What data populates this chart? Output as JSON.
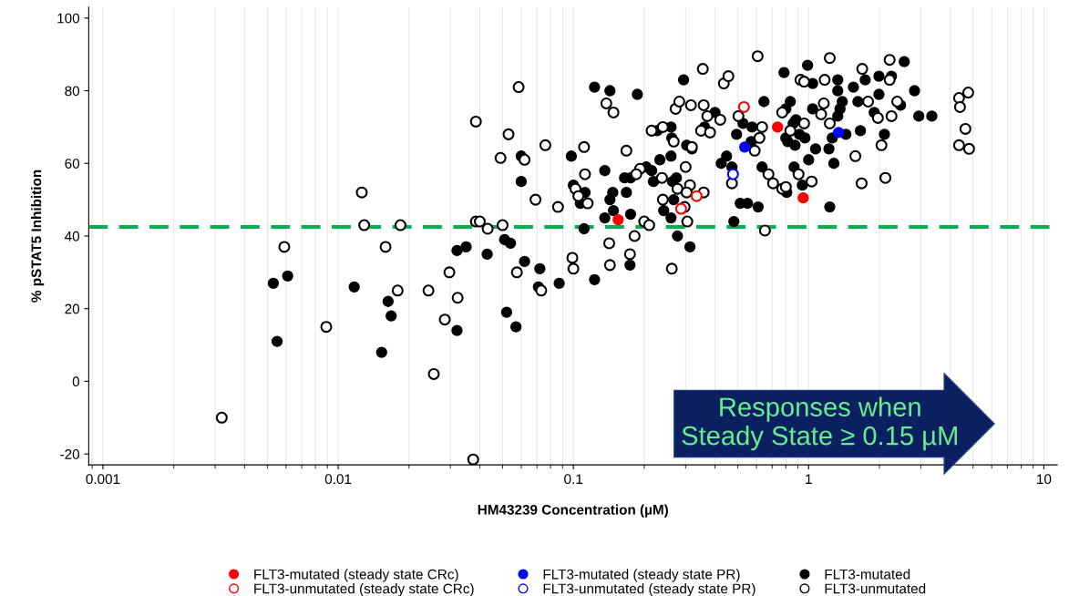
{
  "chart_data": {
    "type": "scatter",
    "xlabel": "HM43239 Concentration (µM)",
    "ylabel": "% pSTAT5 Inhibition",
    "log": "x",
    "xlim": [
      0.00087,
      11.4
    ],
    "xticks": [
      0.001,
      0.01,
      0.1,
      1,
      10
    ],
    "ylim": [
      -23,
      103
    ],
    "yticks": [
      -20,
      0,
      20,
      40,
      60,
      80,
      100
    ],
    "grid": "x",
    "legend": "bottom",
    "marker": "circle",
    "ref_lines": [
      {
        "axis": "y",
        "value": 42.5,
        "color": "#00b050",
        "line_style": "dashed"
      }
    ],
    "annotations": [
      "Responses when\nSteady State ≥ 0.15 µM"
    ],
    "series": [
      {
        "name": "FLT3-mutated (steady state CRc)",
        "color": "#ff0000",
        "x": [
          0.155,
          0.738,
          0.948
        ],
        "values": [
          44.5,
          70,
          50.5
        ]
      },
      {
        "name": "FLT3-unmutated (steady state CRc)",
        "color": "#ff0000",
        "marker": "circle-open",
        "x": [
          0.287,
          0.334,
          0.531
        ],
        "values": [
          47.5,
          51,
          75.5
        ]
      },
      {
        "name": "FLT3-mutated (steady state PR)",
        "color": "#0000ff",
        "x": [
          0.535,
          1.34
        ],
        "values": [
          64.5,
          68.5
        ]
      },
      {
        "name": "FLT3-unmutated (steady state PR)",
        "color": "#0000ff",
        "marker": "circle-open",
        "x": [
          0.477
        ],
        "values": [
          57
        ]
      },
      {
        "name": "FLT3-mutated",
        "color": "#000000",
        "x": [
          0.0053,
          0.0061,
          0.0055,
          0.0117,
          0.0163,
          0.0168,
          0.0153,
          0.032,
          0.035,
          0.043,
          0.051,
          0.054,
          0.062,
          0.072,
          0.071,
          0.087,
          0.123,
          0.052,
          0.057,
          0.032,
          0.174,
          0.313,
          0.277,
          0.06,
          0.06,
          0.098,
          0.1,
          0.112,
          0.107,
          0.111,
          0.123,
          0.143,
          0.187,
          0.136,
          0.147,
          0.168,
          0.143,
          0.148,
          0.136,
          0.175,
          0.165,
          0.175,
          0.204,
          0.215,
          0.219,
          0.233,
          0.26,
          0.227,
          0.26,
          0.262,
          0.303,
          0.319,
          0.294,
          0.4,
          0.361,
          0.274,
          0.264,
          0.267,
          0.242,
          0.26,
          0.448,
          0.425,
          0.472,
          0.494,
          0.526,
          0.512,
          0.481,
          0.646,
          0.575,
          0.57,
          0.786,
          0.99,
          0.836,
          0.8,
          0.883,
          0.86,
          0.914,
          0.964,
          0.8,
          0.815,
          0.875,
          1.04,
          1.04,
          1.07,
          1.22,
          1.0,
          0.867,
          0.634,
          0.94,
          0.807,
          1.28,
          1.23,
          1.33,
          1.33,
          1.39,
          1.36,
          1.33,
          1.26,
          1.44,
          1.55,
          1.74,
          1.99,
          2.25,
          2.55,
          1.99,
          1.62,
          1.9,
          2.46,
          2.82,
          2.94,
          3.34,
          1.66,
          2.1,
          0.55,
          0.61
        ],
        "values": [
          27,
          29,
          11,
          26,
          22,
          18,
          8,
          36,
          37,
          35,
          39,
          38,
          33,
          31,
          26,
          27,
          28,
          19,
          15,
          14,
          32,
          37,
          40,
          62,
          55,
          62,
          54,
          52,
          49,
          42,
          81,
          80,
          79,
          58,
          52,
          52,
          50,
          47,
          45,
          46,
          56,
          56,
          59,
          58,
          55,
          61,
          62,
          69,
          70,
          67,
          65,
          64,
          83,
          74,
          70,
          56,
          55,
          50,
          47,
          45,
          62,
          60,
          59,
          68,
          71,
          49,
          44,
          77,
          70,
          66,
          85,
          87,
          77,
          75,
          72,
          71,
          68,
          67,
          67,
          66,
          65,
          82,
          75,
          64,
          64,
          61,
          59,
          59,
          54,
          52,
          60,
          48,
          83,
          80,
          77,
          75,
          73,
          67,
          68,
          81,
          83,
          84,
          84,
          88,
          79,
          77,
          74,
          76,
          80,
          73,
          73,
          69,
          68,
          49,
          48
        ]
      },
      {
        "name": "FLT3-unmutated",
        "color": "#000000",
        "marker": "circle-open",
        "x": [
          0.0126,
          0.0129,
          0.0184,
          0.0059,
          0.0159,
          0.0179,
          0.0242,
          0.0089,
          0.0255,
          0.0032,
          0.0297,
          0.0322,
          0.0284,
          0.0575,
          0.073,
          0.099,
          0.1,
          0.142,
          0.143,
          0.174,
          0.262,
          0.0375,
          0.0385,
          0.04,
          0.0432,
          0.05,
          0.0385,
          0.053,
          0.0585,
          0.049,
          0.062,
          0.076,
          0.069,
          0.086,
          0.111,
          0.112,
          0.102,
          0.105,
          0.115,
          0.138,
          0.148,
          0.168,
          0.192,
          0.185,
          0.182,
          0.2,
          0.21,
          0.215,
          0.24,
          0.267,
          0.238,
          0.24,
          0.277,
          0.313,
          0.3,
          0.319,
          0.303,
          0.297,
          0.305,
          0.272,
          0.282,
          0.316,
          0.355,
          0.358,
          0.371,
          0.349,
          0.381,
          0.421,
          0.436,
          0.456,
          0.503,
          0.472,
          0.358,
          0.607,
          1.23,
          0.923,
          0.957,
          1.17,
          2.21,
          1.69,
          2.21,
          1.16,
          1.13,
          1.79,
          2.38,
          2.25,
          1.97,
          1.23,
          0.957,
          0.772,
          0.634,
          0.618,
          0.59,
          0.836,
          2.04,
          1.58,
          0.675,
          0.706,
          0.772,
          0.8,
          0.906,
          1.03,
          1.68,
          2.12,
          0.652,
          4.36,
          4.77,
          4.4,
          4.64,
          4.36,
          4.81
        ],
        "values": [
          52,
          43,
          43,
          37,
          37,
          25,
          25,
          15,
          2,
          -10,
          30,
          23,
          17,
          30,
          25,
          34,
          31,
          38,
          32,
          35,
          31,
          -21.5,
          44,
          44,
          42,
          43,
          71.5,
          68,
          81,
          61.5,
          61,
          65,
          50,
          48,
          64.5,
          57,
          53,
          51,
          49,
          76.5,
          74,
          63.5,
          58.5,
          57,
          40,
          44,
          43,
          69,
          70,
          66,
          56,
          50,
          53,
          54,
          59,
          64.5,
          52,
          48,
          44,
          75,
          77,
          76,
          86,
          76,
          73,
          69,
          68.5,
          72,
          82,
          84,
          73,
          54.5,
          52,
          89.5,
          89,
          83,
          82.5,
          83,
          88.5,
          86,
          83,
          76.5,
          73.5,
          77,
          77,
          73,
          72.5,
          71,
          71,
          74,
          70,
          67,
          63.5,
          69,
          65,
          62,
          57,
          54.5,
          53,
          53.5,
          57,
          55,
          54.5,
          56,
          41.5,
          78,
          79.5,
          75.5,
          69.5,
          65,
          64
        ]
      }
    ]
  }
}
